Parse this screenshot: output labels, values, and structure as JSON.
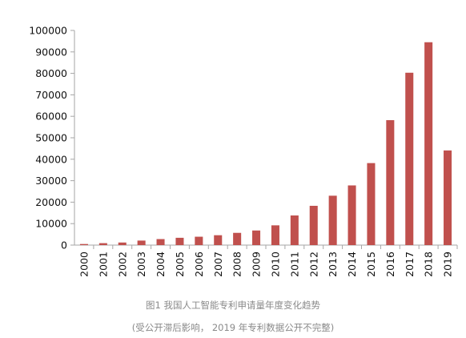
{
  "chart_data": {
    "type": "bar",
    "categories": [
      "2000",
      "2001",
      "2002",
      "2003",
      "2004",
      "2005",
      "2006",
      "2007",
      "2008",
      "2009",
      "2010",
      "2011",
      "2012",
      "2013",
      "2014",
      "2015",
      "2016",
      "2017",
      "2018",
      "2019"
    ],
    "values": [
      500,
      900,
      1200,
      2100,
      2800,
      3400,
      3900,
      4600,
      5700,
      6800,
      9200,
      13800,
      18300,
      23000,
      27800,
      38200,
      58200,
      80300,
      94500,
      44100
    ],
    "title": "",
    "xlabel": "",
    "ylabel": "",
    "ylim": [
      0,
      100000
    ],
    "yticks": [
      "0",
      "10000",
      "20000",
      "30000",
      "40000",
      "50000",
      "60000",
      "70000",
      "80000",
      "90000",
      "100000"
    ],
    "bar_color": "#c0504d",
    "axis_color": "#a6a6a6",
    "grid": false,
    "legend": "none"
  },
  "caption": {
    "line1": "图1 我国人工智能专利申请量年度变化趋势",
    "line2": "(受公开滞后影响， 2019 年专利数据公开不完整)"
  }
}
